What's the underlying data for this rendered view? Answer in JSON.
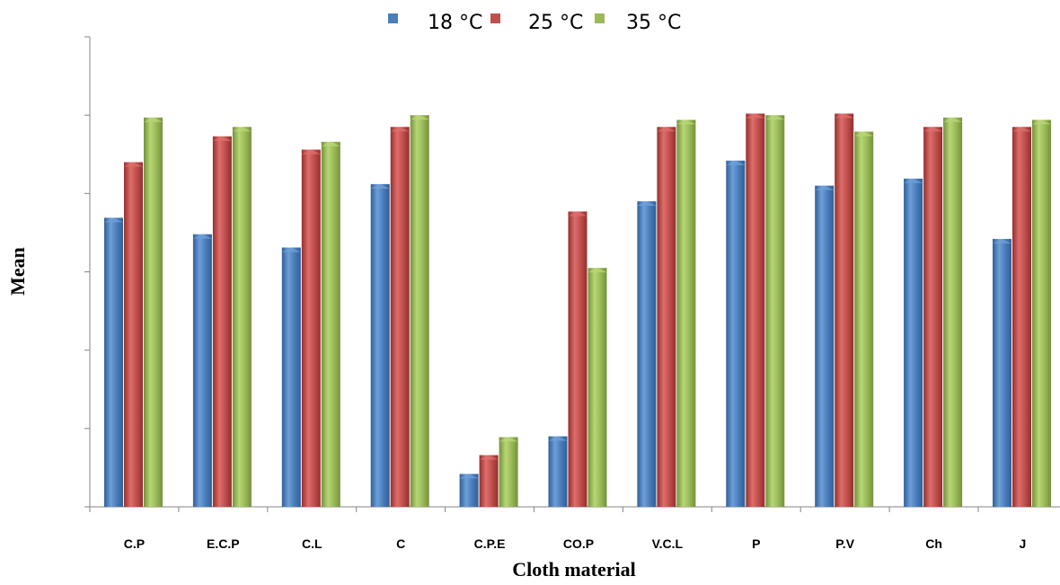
{
  "chart_data": {
    "type": "bar",
    "title": "",
    "xlabel": "Cloth material",
    "ylabel": "Mean",
    "categories": [
      "C.P",
      "E.C.P",
      "C.L",
      "C",
      "C.P.E",
      "CO.P",
      "V.C.L",
      "P",
      "P.V",
      "Ch",
      "J"
    ],
    "series": [
      {
        "name": "18 °C",
        "values": [
          3.69,
          3.48,
          3.31,
          4.12,
          0.42,
          0.9,
          3.9,
          4.42,
          4.1,
          4.19,
          3.42
        ]
      },
      {
        "name": "25 °C",
        "values": [
          4.4,
          4.73,
          4.56,
          4.85,
          0.66,
          3.77,
          4.85,
          5.02,
          5.02,
          4.85,
          4.85
        ]
      },
      {
        "name": "35 °C",
        "values": [
          4.97,
          4.85,
          4.66,
          5.0,
          0.89,
          3.05,
          4.94,
          5.0,
          4.79,
          4.97,
          4.94
        ]
      }
    ],
    "ylim": [
      0,
      6
    ],
    "yticks_shown": false,
    "grid": false,
    "legend_position": "top-center",
    "colors": {
      "18 °C": {
        "base": "#4a7ebb",
        "light": "#6f9fd8",
        "dark": "#2f5f97"
      },
      "25 °C": {
        "base": "#c0504d",
        "light": "#de6e6b",
        "dark": "#942f2d"
      },
      "35 °C": {
        "base": "#9bbb59",
        "light": "#b8d675",
        "dark": "#74913b"
      }
    }
  }
}
